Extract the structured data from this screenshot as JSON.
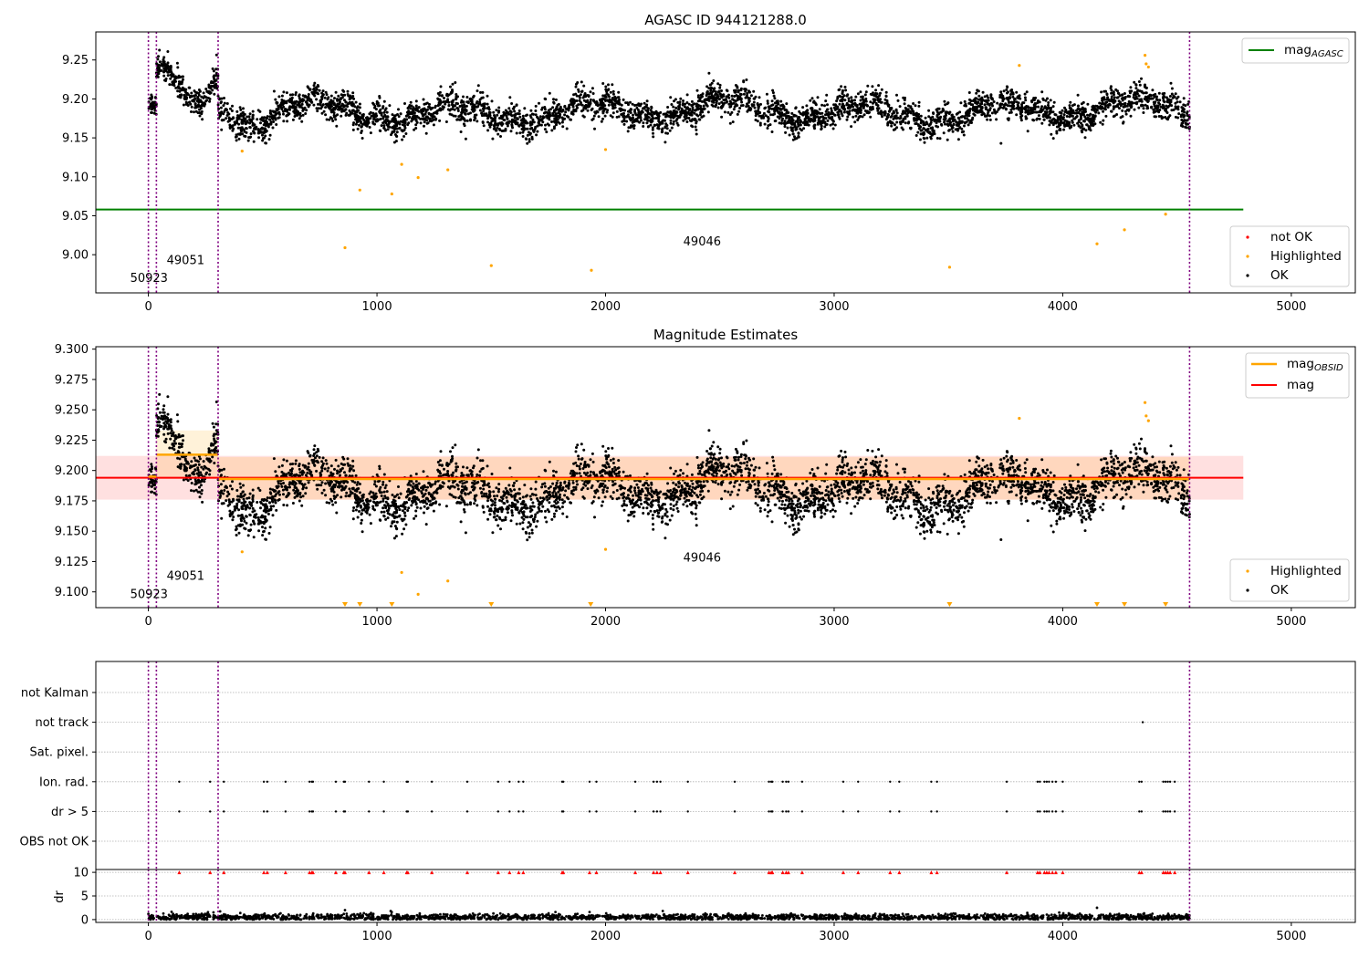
{
  "chart_data": [
    {
      "type": "scatter",
      "title": "AGASC ID 944121288.0",
      "xticks": [
        "0",
        "1000",
        "2000",
        "3000",
        "4000",
        "5000"
      ],
      "yticks": [
        "9.00",
        "9.05",
        "9.10",
        "9.15",
        "9.20",
        "9.25"
      ],
      "xlim": [
        -230,
        5280
      ],
      "ylim": [
        8.951,
        9.286
      ],
      "mag_agasc": 9.058,
      "legend_upper": {
        "label": "mag",
        "subscript": "AGASC",
        "color": "#008000",
        "position": "top-right"
      },
      "legend_lower": {
        "entries": [
          {
            "label": "not OK",
            "color": "#ff0000"
          },
          {
            "label": "Highlighted",
            "color": "#ffa500"
          },
          {
            "label": "OK",
            "color": "#000000"
          }
        ],
        "position": "lower-right"
      },
      "obsid_labels": [
        {
          "text": "50923",
          "x": -80,
          "y": 8.965
        },
        {
          "text": "49051",
          "x": 80,
          "y": 8.988
        },
        {
          "text": "49046",
          "x": 2340,
          "y": 9.012
        }
      ],
      "highlighted_points": [
        {
          "x": 410,
          "y": 9.133
        },
        {
          "x": 860,
          "y": 9.009
        },
        {
          "x": 925,
          "y": 9.083
        },
        {
          "x": 1065,
          "y": 9.078
        },
        {
          "x": 1108,
          "y": 9.116
        },
        {
          "x": 1180,
          "y": 9.099
        },
        {
          "x": 1310,
          "y": 9.109
        },
        {
          "x": 1500,
          "y": 8.986
        },
        {
          "x": 1938,
          "y": 8.98
        },
        {
          "x": 2000,
          "y": 9.135
        },
        {
          "x": 3505,
          "y": 8.984
        },
        {
          "x": 3810,
          "y": 9.243
        },
        {
          "x": 4150,
          "y": 9.014
        },
        {
          "x": 4270,
          "y": 9.032
        },
        {
          "x": 4360,
          "y": 9.256
        },
        {
          "x": 4365,
          "y": 9.245
        },
        {
          "x": 4375,
          "y": 9.241
        },
        {
          "x": 4450,
          "y": 9.052
        }
      ],
      "outlier_ok_points": [
        {
          "x": 3730,
          "y": 9.143
        }
      ]
    },
    {
      "type": "scatter",
      "title": "Magnitude Estimates",
      "xticks": [
        "0",
        "1000",
        "2000",
        "3000",
        "4000",
        "5000"
      ],
      "yticks": [
        "9.100",
        "9.125",
        "9.150",
        "9.175",
        "9.200",
        "9.225",
        "9.250",
        "9.275",
        "9.300"
      ],
      "xlim": [
        -230,
        5280
      ],
      "ylim": [
        9.087,
        9.302
      ],
      "mag": 9.194,
      "mag_band": [
        9.176,
        9.212
      ],
      "mag_obsid_segments": [
        {
          "x0": 0,
          "x1": 35,
          "mag": 9.195
        },
        {
          "x0": 35,
          "x1": 305,
          "mag": 9.213,
          "band": [
            9.193,
            9.233
          ]
        },
        {
          "x0": 305,
          "x1": 4555,
          "mag": 9.193,
          "band": [
            9.176,
            9.211
          ]
        }
      ],
      "legend_upper": {
        "entries": [
          {
            "label": "mag",
            "subscript": "OBSID",
            "color": "#ffa500"
          },
          {
            "label": "mag",
            "color": "#ff0000"
          }
        ],
        "position": "top-right"
      },
      "legend_lower": {
        "entries": [
          {
            "label": "Highlighted",
            "color": "#ffa500"
          },
          {
            "label": "OK",
            "color": "#000000"
          }
        ],
        "position": "lower-right"
      },
      "obsid_labels": [
        {
          "text": "50923",
          "x": -80,
          "y": 9.095
        },
        {
          "text": "49051",
          "x": 80,
          "y": 9.11
        },
        {
          "text": "49046",
          "x": 2340,
          "y": 9.125
        }
      ],
      "highlighted_points": [
        {
          "x": 410,
          "y": 9.133
        },
        {
          "x": 1108,
          "y": 9.116
        },
        {
          "x": 1180,
          "y": 9.098
        },
        {
          "x": 1310,
          "y": 9.109
        },
        {
          "x": 2000,
          "y": 9.135
        },
        {
          "x": 3810,
          "y": 9.243
        },
        {
          "x": 4360,
          "y": 9.256
        },
        {
          "x": 4365,
          "y": 9.245
        },
        {
          "x": 4375,
          "y": 9.241
        }
      ],
      "below_range_markers": [
        860,
        925,
        1065,
        1500,
        1935,
        3505,
        4150,
        4270,
        4450
      ]
    },
    {
      "type": "scatter",
      "categories": [
        "not Kalman",
        "not track",
        "Sat. pixel.",
        "Ion. rad.",
        "dr > 5",
        "OBS not OK"
      ],
      "xticks": [
        "0",
        "1000",
        "2000",
        "3000",
        "4000",
        "5000"
      ],
      "xlim": [
        -230,
        5280
      ],
      "flag_x": [
        135,
        270,
        330,
        505,
        520,
        600,
        705,
        715,
        720,
        820,
        855,
        860,
        965,
        1030,
        1130,
        1135,
        1240,
        1395,
        1530,
        1580,
        1620,
        1640,
        1810,
        1815,
        1930,
        1960,
        2130,
        2210,
        2225,
        2240,
        2360,
        2565,
        2715,
        2725,
        2730,
        2775,
        2790,
        2800,
        2860,
        3040,
        3105,
        3245,
        3285,
        3425,
        3450,
        3755,
        3890,
        3900,
        3920,
        3930,
        3940,
        3955,
        3970,
        4000,
        4335,
        4345,
        4440,
        4450,
        4460,
        4470,
        4490
      ],
      "not_track_points": [
        {
          "x": 4350
        }
      ],
      "dr": {
        "ylabel": "dr",
        "yticks": [
          "0",
          "5",
          "10"
        ],
        "ylim": [
          -0.6,
          10.6
        ],
        "outliers": [
          {
            "x": 860,
            "y": 2.0
          },
          {
            "x": 1060,
            "y": 1.8
          },
          {
            "x": 1930,
            "y": 1.6
          },
          {
            "x": 4150,
            "y": 2.5
          }
        ],
        "capped_marker_value": 10
      }
    }
  ],
  "time_ranges": [
    {
      "x0": 0,
      "x1": 35,
      "base": 9.19,
      "kind": "flat"
    },
    {
      "x0": 35,
      "x1": 305,
      "base": 9.195,
      "kind": "bump"
    },
    {
      "x0": 305,
      "x1": 4555,
      "base": 9.195,
      "kind": "main"
    }
  ],
  "obsid_boundaries": [
    0,
    35,
    305,
    4555
  ],
  "colors": {
    "ok": "#000000",
    "highlighted": "#ffa500",
    "not_ok": "#ff0000",
    "agasc": "#008000",
    "mag": "#ff0000",
    "obsid": "#ffa500",
    "boundary": "#800080"
  }
}
